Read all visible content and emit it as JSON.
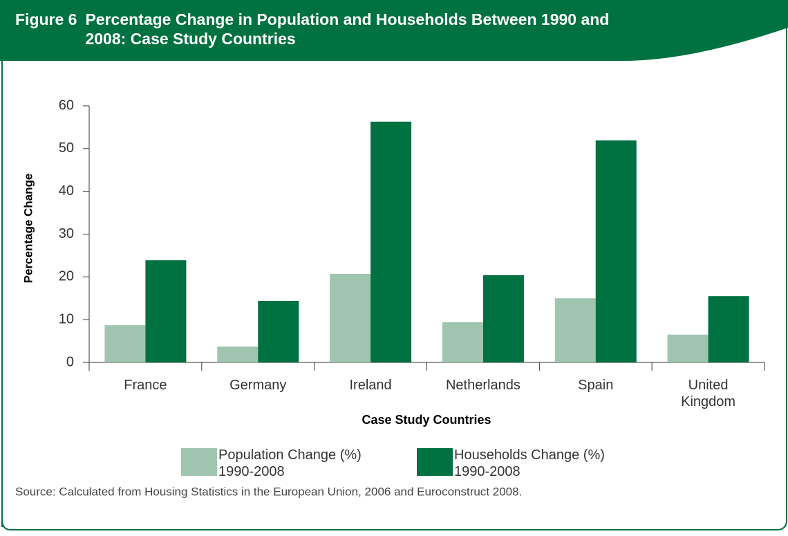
{
  "chart_data": {
    "type": "bar",
    "figure_label": "Figure 6",
    "title": "Percentage Change in Population and Households Between 1990 and 2008: Case Study Countries",
    "y_label": "Percentage Change",
    "x_label": "Case Study Countries",
    "source": "Source: Calculated from Housing Statistics in the European Union, 2006 and Euroconstruct 2008.",
    "categories": [
      "France",
      "Germany",
      "Ireland",
      "Netherlands",
      "Spain",
      "United Kingdom"
    ],
    "series": [
      {
        "name": "Population Change (%) 1990-2008",
        "color": "#9fc5b0",
        "values": [
          8.7,
          3.7,
          20.7,
          9.4,
          15.0,
          6.5
        ]
      },
      {
        "name": "Households Change (%) 1990-2008",
        "color": "#007140",
        "values": [
          23.9,
          14.4,
          56.3,
          20.4,
          51.9,
          15.5
        ]
      }
    ],
    "ylim": [
      0,
      60
    ],
    "yticks": [
      0,
      10,
      20,
      30,
      40,
      50,
      60
    ]
  }
}
